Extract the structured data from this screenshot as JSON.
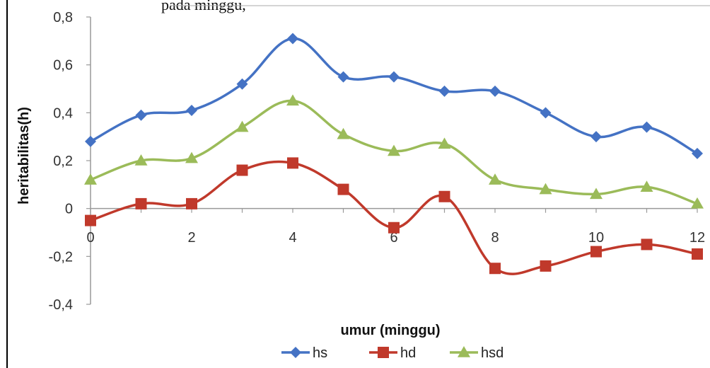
{
  "header_fragment": "pada minggu,",
  "chart_data": {
    "type": "line",
    "title": "",
    "xlabel": "umur (minggu)",
    "ylabel": "heritabilitas(h)",
    "x": [
      0,
      1,
      2,
      3,
      4,
      5,
      6,
      7,
      8,
      9,
      10,
      11,
      12
    ],
    "x_ticks": [
      "0",
      "2",
      "4",
      "6",
      "8",
      "10",
      "12"
    ],
    "y_ticks": [
      "0,8",
      "0,6",
      "0,4",
      "0,2",
      "0",
      "-0,2",
      "-0,4"
    ],
    "ylim": [
      -0.4,
      0.8
    ],
    "xlim": [
      0,
      12
    ],
    "legend_position": "bottom",
    "grid": false,
    "series": [
      {
        "name": "hs",
        "color": "#4472C4",
        "marker": "diamond",
        "values": [
          0.28,
          0.39,
          0.41,
          0.52,
          0.71,
          0.55,
          0.55,
          0.49,
          0.49,
          0.4,
          0.3,
          0.34,
          0.23
        ]
      },
      {
        "name": "hd",
        "color": "#C0392B",
        "marker": "square",
        "values": [
          -0.05,
          0.02,
          0.02,
          0.16,
          0.19,
          0.08,
          -0.08,
          0.05,
          -0.25,
          -0.24,
          -0.18,
          -0.15,
          -0.19
        ]
      },
      {
        "name": "hsd",
        "color": "#9BBB59",
        "marker": "triangle",
        "values": [
          0.12,
          0.2,
          0.21,
          0.34,
          0.45,
          0.31,
          0.24,
          0.27,
          0.12,
          0.08,
          0.06,
          0.09,
          0.02
        ]
      }
    ]
  }
}
